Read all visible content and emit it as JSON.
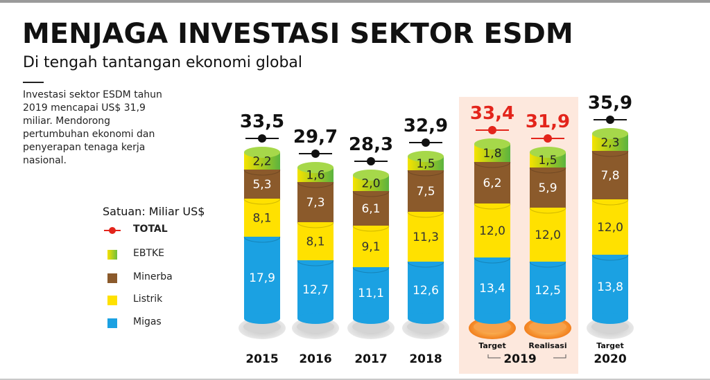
{
  "header": {
    "title": "MENJAGA INVESTASI SEKTOR ESDM",
    "subtitle": "Di tengah tantangan ekonomi global",
    "intro": "Investasi sektor ESDM tahun 2019 mencapai US$ 31,9 miliar. Mendorong pertumbuhan ekonomi dan penyerapan tenaga kerja nasional."
  },
  "legend": {
    "unit": "Satuan: Miliar US$",
    "total": "TOTAL",
    "items": [
      {
        "label": "EBTKE",
        "color": "#8dc63f"
      },
      {
        "label": "Minerba",
        "color": "#8b5a2b"
      },
      {
        "label": "Listrik",
        "color": "#ffe100"
      },
      {
        "label": "Migas",
        "color": "#1ba1e2"
      }
    ]
  },
  "chart_data": {
    "type": "bar",
    "stacked": true,
    "categories": [
      "2015",
      "2016",
      "2017",
      "2018",
      "Target",
      "Realisasi",
      "Target"
    ],
    "group_labels": [
      "2015",
      "2016",
      "2017",
      "2018",
      "2019",
      "2019",
      "2020"
    ],
    "highlight_group": "2019",
    "series": [
      {
        "name": "Migas",
        "color": "#1ba1e2",
        "values": [
          17.9,
          12.7,
          11.1,
          12.6,
          13.4,
          12.5,
          13.8
        ],
        "labels": [
          "17,9",
          "12,7",
          "11,1",
          "12,6",
          "13,4",
          "12,5",
          "13,8"
        ]
      },
      {
        "name": "Listrik",
        "color": "#ffe100",
        "values": [
          8.1,
          8.1,
          9.1,
          11.3,
          12.0,
          12.0,
          12.0
        ],
        "labels": [
          "8,1",
          "8,1",
          "9,1",
          "11,3",
          "12,0",
          "12,0",
          "12,0"
        ]
      },
      {
        "name": "Minerba",
        "color": "#8b5a2b",
        "values": [
          5.3,
          7.3,
          6.1,
          7.5,
          6.2,
          5.9,
          7.8
        ],
        "labels": [
          "5,3",
          "7,3",
          "6,1",
          "7,5",
          "6,2",
          "5,9",
          "7,8"
        ]
      },
      {
        "name": "EBTKE",
        "color": "#8dc63f",
        "values": [
          2.2,
          1.6,
          2.0,
          1.5,
          1.8,
          1.5,
          2.3
        ],
        "labels": [
          "2,2",
          "1,6",
          "2,0",
          "1,5",
          "1,8",
          "1,5",
          "2,3"
        ]
      }
    ],
    "totals": [
      33.5,
      29.7,
      28.3,
      32.9,
      33.4,
      31.9,
      35.9
    ],
    "total_labels": [
      "33,5",
      "29,7",
      "28,3",
      "32,9",
      "33,4",
      "31,9",
      "35,9"
    ],
    "total_colors": [
      "#111111",
      "#111111",
      "#111111",
      "#111111",
      "#e3241b",
      "#e3241b",
      "#111111"
    ],
    "sublabels": [
      "",
      "",
      "",
      "",
      "Target",
      "Realisasi",
      "Target"
    ],
    "ylim": [
      0,
      36
    ]
  }
}
